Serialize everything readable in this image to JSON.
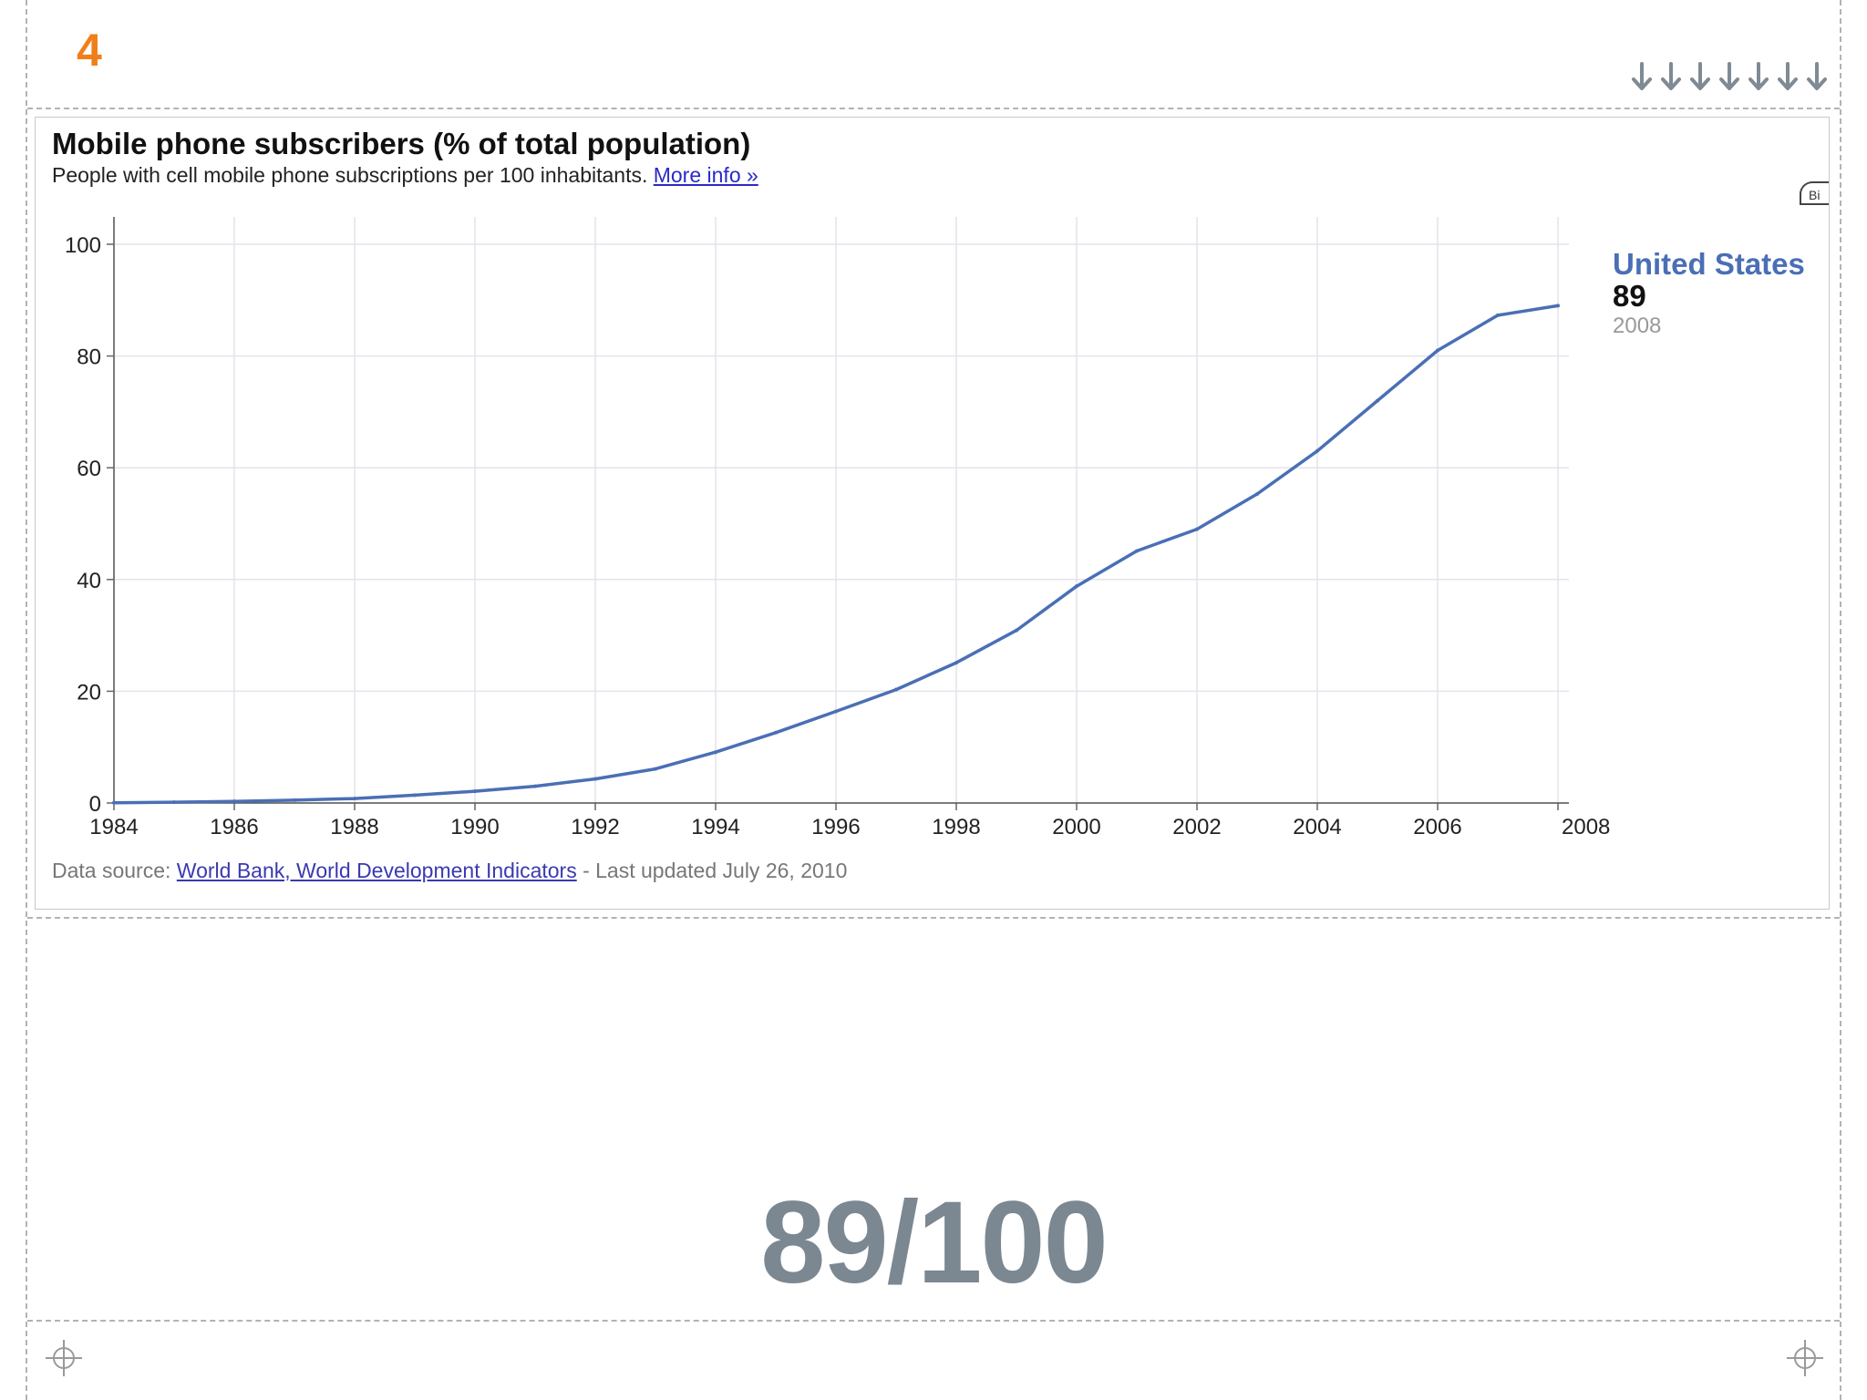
{
  "slide": {
    "number": "4",
    "fraction": "89/100"
  },
  "arrows": [
    "down-arrow",
    "down-arrow",
    "down-arrow",
    "down-arrow",
    "down-arrow",
    "down-arrow",
    "down-arrow"
  ],
  "chart": {
    "title": "Mobile phone subscribers (% of total population)",
    "subtitle": "People with cell mobile phone subscriptions per 100 inhabitants.",
    "more_info": "More info »",
    "side_tab": "Bi",
    "footer_prefix": "Data source: ",
    "footer_link": "World Bank, World Development Indicators",
    "footer_suffix": " - Last updated July 26, 2010"
  },
  "chart_data": {
    "type": "line",
    "title": "Mobile phone subscribers (% of total population)",
    "xlabel": "",
    "ylabel": "",
    "xlim": [
      1984,
      2008
    ],
    "ylim": [
      0,
      100
    ],
    "x_ticks": [
      1984,
      1986,
      1988,
      1990,
      1992,
      1994,
      1996,
      1998,
      2000,
      2002,
      2004,
      2006,
      2008
    ],
    "y_ticks": [
      0,
      20,
      40,
      60,
      80,
      100
    ],
    "grid": true,
    "series": [
      {
        "name": "United States",
        "color": "#4a6fb5",
        "x": [
          1984,
          1985,
          1986,
          1987,
          1988,
          1989,
          1990,
          1991,
          1992,
          1993,
          1994,
          1995,
          1996,
          1997,
          1998,
          1999,
          2000,
          2001,
          2002,
          2003,
          2004,
          2005,
          2006,
          2007,
          2008
        ],
        "values": [
          0.04,
          0.15,
          0.3,
          0.5,
          0.8,
          1.4,
          2.1,
          3.0,
          4.3,
          6.1,
          9.1,
          12.6,
          16.4,
          20.3,
          25.1,
          30.9,
          38.8,
          45.1,
          49.0,
          55.3,
          63.0,
          72.0,
          81.0,
          87.3,
          89.0
        ]
      }
    ],
    "label": {
      "name": "United States",
      "value": "89",
      "year": "2008"
    }
  }
}
